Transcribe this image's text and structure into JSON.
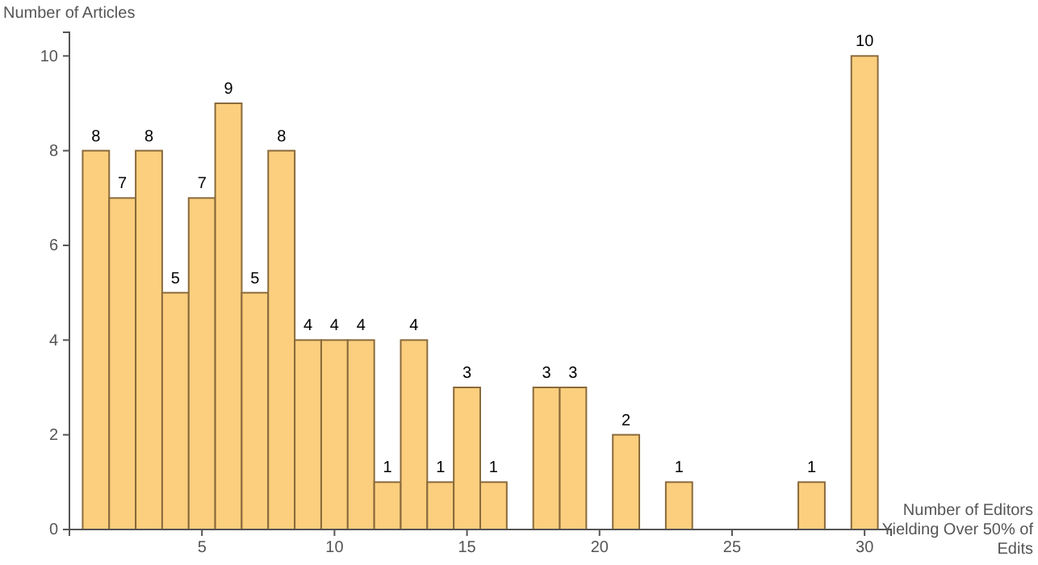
{
  "chart_data": {
    "type": "histogram",
    "ylabel": "Number of Articles",
    "xlabel": "Number of Editors Yielding Over 50% of Edits",
    "bins": [
      0.5,
      1.5,
      2.5,
      3.5,
      4.5,
      5.5,
      6.5,
      7.5,
      8.5,
      9.5,
      10.5,
      11.5,
      12.5,
      13.5,
      14.5,
      15.5,
      16.5,
      17.5,
      18.5,
      19.5,
      20.5,
      21.5,
      22.5,
      23.5,
      24.5,
      25.5,
      26.5,
      27.5,
      28.5,
      29.5,
      30.5
    ],
    "values": [
      8,
      7,
      8,
      5,
      7,
      9,
      5,
      8,
      4,
      4,
      4,
      1,
      4,
      1,
      3,
      1,
      0,
      3,
      3,
      0,
      2,
      0,
      1,
      0,
      0,
      0,
      0,
      1,
      0,
      10
    ],
    "value_labels": [
      "8",
      "7",
      "8",
      "5",
      "7",
      "9",
      "5",
      "8",
      "4",
      "4",
      "4",
      "1",
      "4",
      "1",
      "3",
      "1",
      null,
      "3",
      "3",
      null,
      "2",
      null,
      "1",
      null,
      null,
      null,
      null,
      "1",
      null,
      "10"
    ],
    "color": "#fbcf7e",
    "xlim": [
      0,
      31
    ],
    "ylim": [
      0,
      10.5
    ],
    "xticks": [
      5,
      10,
      15,
      20,
      25,
      30
    ],
    "yticks": [
      0,
      2,
      4,
      6,
      8,
      10
    ],
    "grid": false
  }
}
